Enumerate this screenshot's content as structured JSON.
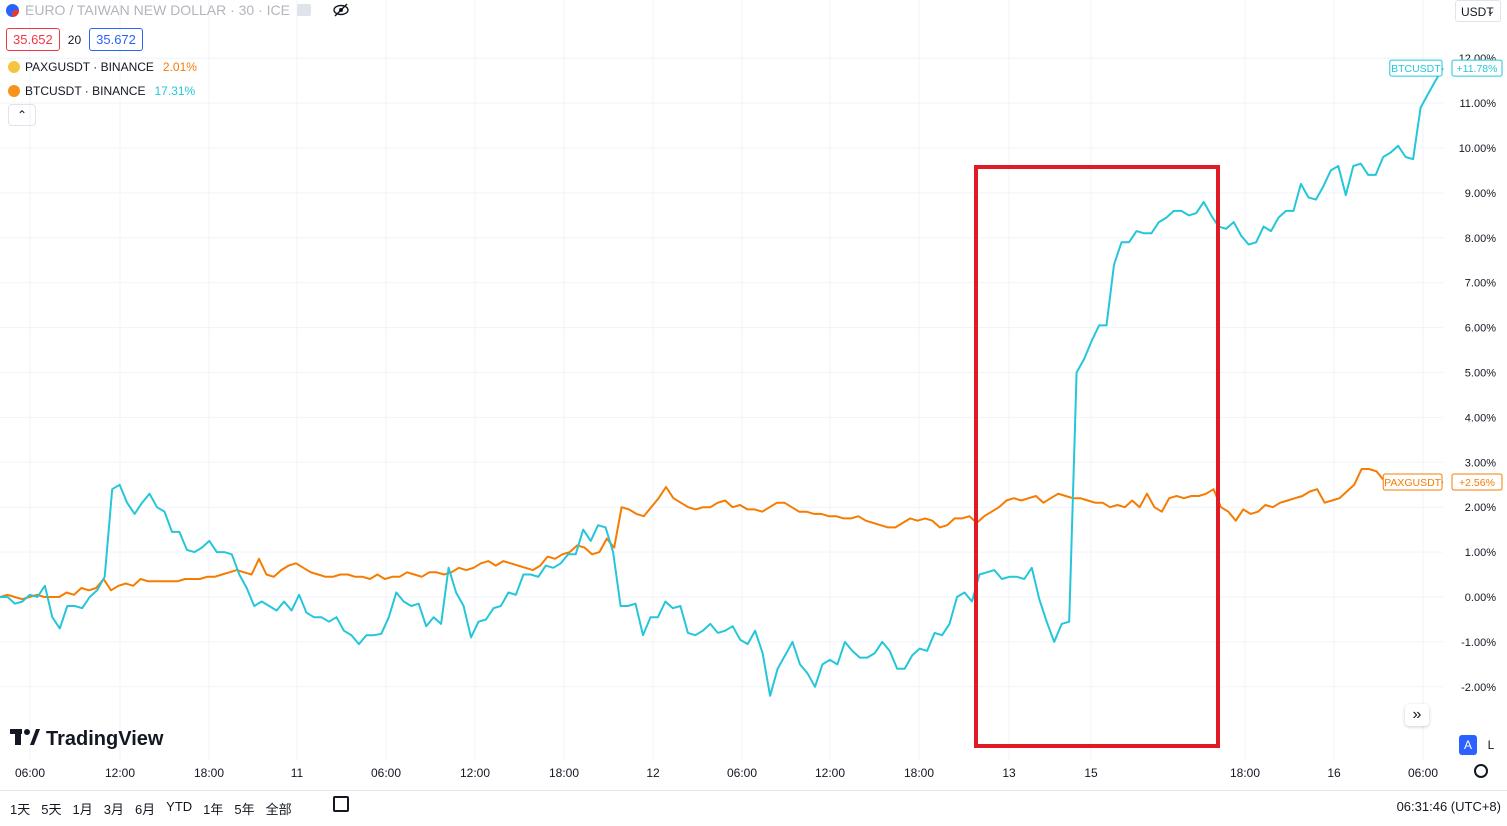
{
  "header": {
    "symbol_title": "EURO / TAIWAN NEW DOLLAR · 30 · ICE",
    "bid": "35.652",
    "spread": "20",
    "ask": "35.672",
    "flag_icon": "eur-twd-flag-icon",
    "eye_icon": "hide-eye-icon"
  },
  "legend": [
    {
      "symbol": "PAXGUSDT · BINANCE",
      "change": "2.01%",
      "color": "#f57c00"
    },
    {
      "symbol": "BTCUSDT · BINANCE",
      "change": "17.31%",
      "color": "#26c6da"
    }
  ],
  "currency_select": "USDT",
  "brand": "TradingView",
  "nav_button": "»",
  "scale_auto": "A",
  "scale_log": "L",
  "bottom": {
    "ranges": [
      "1天",
      "5天",
      "1月",
      "3月",
      "6月",
      "YTD",
      "1年",
      "5年",
      "全部"
    ],
    "clock": "06:31:46 (UTC+8)"
  },
  "chart_data": {
    "type": "line",
    "ylabel": "",
    "xlabel": "",
    "y_unit": "%",
    "ylim": [
      -2.9,
      12.2
    ],
    "y_ticks": [
      "12.00%",
      "11.00%",
      "10.00%",
      "9.00%",
      "8.00%",
      "7.00%",
      "6.00%",
      "5.00%",
      "4.00%",
      "3.00%",
      "2.00%",
      "1.00%",
      "0.00%",
      "-1.00%",
      "-2.00%"
    ],
    "x_ticks": [
      "06:00",
      "12:00",
      "18:00",
      "11",
      "06:00",
      "12:00",
      "18:00",
      "12",
      "06:00",
      "12:00",
      "18:00",
      "13",
      "15",
      "18:00",
      "16",
      "06:00"
    ],
    "grid": true,
    "series": [
      {
        "name": "BTCUSDT",
        "color": "#26c6da",
        "last_label": "+11.78%",
        "values": [
          0.0,
          0.0,
          -0.15,
          -0.1,
          0.05,
          0.0,
          0.25,
          -0.45,
          -0.7,
          -0.2,
          -0.2,
          -0.25,
          0.0,
          0.15,
          0.45,
          2.4,
          2.5,
          2.1,
          1.85,
          2.1,
          2.3,
          2.0,
          1.9,
          1.45,
          1.45,
          1.05,
          1.0,
          1.1,
          1.25,
          1.0,
          1.0,
          0.95,
          0.5,
          0.2,
          -0.2,
          -0.1,
          -0.2,
          -0.3,
          -0.1,
          -0.3,
          0.05,
          -0.35,
          -0.45,
          -0.45,
          -0.55,
          -0.45,
          -0.75,
          -0.85,
          -1.05,
          -0.85,
          -0.85,
          -0.82,
          -0.45,
          0.1,
          -0.1,
          -0.2,
          -0.15,
          -0.65,
          -0.45,
          -0.6,
          0.65,
          0.1,
          -0.2,
          -0.9,
          -0.55,
          -0.5,
          -0.25,
          -0.2,
          0.1,
          0.05,
          0.5,
          0.5,
          0.45,
          0.7,
          0.65,
          0.75,
          0.95,
          0.95,
          1.5,
          1.25,
          1.6,
          1.55,
          1.0,
          -0.2,
          -0.2,
          -0.15,
          -0.85,
          -0.45,
          -0.45,
          -0.1,
          -0.25,
          -0.2,
          -0.8,
          -0.85,
          -0.75,
          -0.6,
          -0.8,
          -0.75,
          -0.65,
          -0.95,
          -1.05,
          -0.75,
          -1.25,
          -2.2,
          -1.6,
          -1.3,
          -1.0,
          -1.5,
          -1.7,
          -2.0,
          -1.5,
          -1.4,
          -1.5,
          -1.0,
          -1.2,
          -1.35,
          -1.35,
          -1.25,
          -1.0,
          -1.2,
          -1.6,
          -1.6,
          -1.3,
          -1.15,
          -1.2,
          -0.8,
          -0.85,
          -0.6,
          0.0,
          0.1,
          -0.1,
          0.5,
          0.55,
          0.6,
          0.4,
          0.45,
          0.45,
          0.4,
          0.65,
          -0.05,
          -0.55,
          -1.0,
          -0.6,
          -0.55,
          5.0,
          5.3,
          5.7,
          6.05,
          6.05,
          7.4,
          7.9,
          7.9,
          8.15,
          8.1,
          8.1,
          8.35,
          8.45,
          8.6,
          8.6,
          8.5,
          8.55,
          8.8,
          8.5,
          8.25,
          8.2,
          8.35,
          8.05,
          7.85,
          7.9,
          8.25,
          8.15,
          8.45,
          8.6,
          8.6,
          9.2,
          8.9,
          8.85,
          9.15,
          9.5,
          9.6,
          8.95,
          9.6,
          9.65,
          9.4,
          9.4,
          9.8,
          9.9,
          10.05,
          9.8,
          9.75,
          10.9,
          11.2,
          11.5,
          11.78
        ]
      },
      {
        "name": "PAXGUSDT",
        "color": "#f57c00",
        "last_label": "+2.56%",
        "values": [
          0.0,
          0.05,
          0.0,
          -0.05,
          0.0,
          0.05,
          0.0,
          0.0,
          0.0,
          0.1,
          0.05,
          0.2,
          0.15,
          0.2,
          0.4,
          0.15,
          0.25,
          0.3,
          0.25,
          0.4,
          0.35,
          0.35,
          0.35,
          0.35,
          0.35,
          0.4,
          0.4,
          0.4,
          0.45,
          0.45,
          0.5,
          0.55,
          0.6,
          0.55,
          0.5,
          0.85,
          0.5,
          0.45,
          0.6,
          0.7,
          0.75,
          0.65,
          0.55,
          0.5,
          0.45,
          0.45,
          0.5,
          0.5,
          0.45,
          0.45,
          0.4,
          0.5,
          0.4,
          0.45,
          0.45,
          0.55,
          0.5,
          0.45,
          0.55,
          0.55,
          0.5,
          0.55,
          0.65,
          0.6,
          0.65,
          0.75,
          0.8,
          0.7,
          0.8,
          0.75,
          0.7,
          0.65,
          0.6,
          0.7,
          0.9,
          0.85,
          0.95,
          1.0,
          1.15,
          1.1,
          0.95,
          1.0,
          1.3,
          1.1,
          2.0,
          1.95,
          1.85,
          1.8,
          2.0,
          2.2,
          2.45,
          2.2,
          2.1,
          2.0,
          1.95,
          2.0,
          2.0,
          2.1,
          2.15,
          2.0,
          2.05,
          1.95,
          1.95,
          1.9,
          2.0,
          2.1,
          2.1,
          2.0,
          1.9,
          1.9,
          1.85,
          1.85,
          1.8,
          1.8,
          1.75,
          1.75,
          1.8,
          1.7,
          1.65,
          1.6,
          1.55,
          1.55,
          1.65,
          1.75,
          1.7,
          1.75,
          1.7,
          1.55,
          1.6,
          1.75,
          1.75,
          1.8,
          1.65,
          1.8,
          1.9,
          2.0,
          2.15,
          2.2,
          2.15,
          2.2,
          2.25,
          2.1,
          2.2,
          2.3,
          2.25,
          2.2,
          2.2,
          2.15,
          2.1,
          2.1,
          2.0,
          2.05,
          2.0,
          2.15,
          2.0,
          2.3,
          2.0,
          1.9,
          2.2,
          2.25,
          2.2,
          2.25,
          2.25,
          2.3,
          2.4,
          2.0,
          1.9,
          1.7,
          1.95,
          1.85,
          1.9,
          2.05,
          2.0,
          2.1,
          2.15,
          2.2,
          2.25,
          2.35,
          2.4,
          2.1,
          2.15,
          2.2,
          2.35,
          2.5,
          2.85,
          2.85,
          2.8,
          2.6,
          2.4,
          2.45,
          2.4,
          2.5,
          2.6,
          2.55,
          2.5,
          2.56
        ]
      }
    ],
    "annotation": {
      "type": "rectangle",
      "color": "#e01b24"
    }
  }
}
